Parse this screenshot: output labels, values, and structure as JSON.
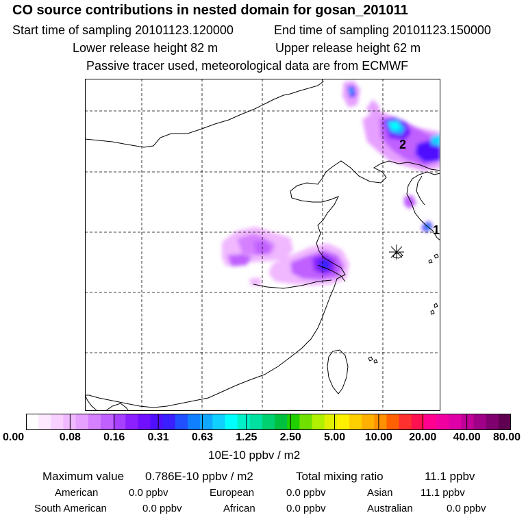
{
  "header": {
    "title": "CO  source contributions in nested domain for gosan_201011",
    "start_time": "Start time of sampling 20101123.120000",
    "end_time": "End time of sampling 20101123.150000",
    "lower_release": "Lower release height   82 m",
    "upper_release": "Upper release height   62 m",
    "tracer_note": "Passive tracer used, meteorological data are from ECMWF"
  },
  "map": {
    "markers": [
      "1",
      "2"
    ],
    "receptor_symbol": "asterisk-icon"
  },
  "colorbar": {
    "colors": [
      "#ffffff",
      "#fde8ff",
      "#f8d0ff",
      "#f0b8ff",
      "#e6a0ff",
      "#d580ff",
      "#c060ff",
      "#a840ff",
      "#8c20ff",
      "#7010ff",
      "#5010ff",
      "#3a20ff",
      "#2050ff",
      "#1080ff",
      "#10a8ff",
      "#10d0ff",
      "#00ffff",
      "#00f0c8",
      "#00e0a0",
      "#00d070",
      "#00c040",
      "#20d000",
      "#70e000",
      "#b0f000",
      "#e0f000",
      "#fff000",
      "#ffd000",
      "#ffb000",
      "#ff9000",
      "#ff6000",
      "#ff3030",
      "#ff1050",
      "#ff0090",
      "#f000a0",
      "#e000a8",
      "#c00098",
      "#a00088",
      "#800070",
      "#600050"
    ],
    "tick_labels": [
      "0.00",
      "0.08",
      "0.16",
      "0.31",
      "0.63",
      "1.25",
      "2.50",
      "5.00",
      "10.00",
      "20.00",
      "40.00",
      "80.00"
    ],
    "unit": "10E-10 ppbv / m2"
  },
  "summary": {
    "max_label": "Maximum value",
    "max_value": "0.786E-10 ppbv / m2",
    "total_label": "Total mixing ratio",
    "total_value": "11.1 ppbv",
    "regions": [
      {
        "name": "American",
        "value": "0.0 ppbv"
      },
      {
        "name": "European",
        "value": "0.0 ppbv"
      },
      {
        "name": "Asian",
        "value": "11.1 ppbv"
      },
      {
        "name": "South American",
        "value": "0.0 ppbv"
      },
      {
        "name": "African",
        "value": "0.0 ppbv"
      },
      {
        "name": "Australian",
        "value": "0.0 ppbv"
      }
    ]
  }
}
